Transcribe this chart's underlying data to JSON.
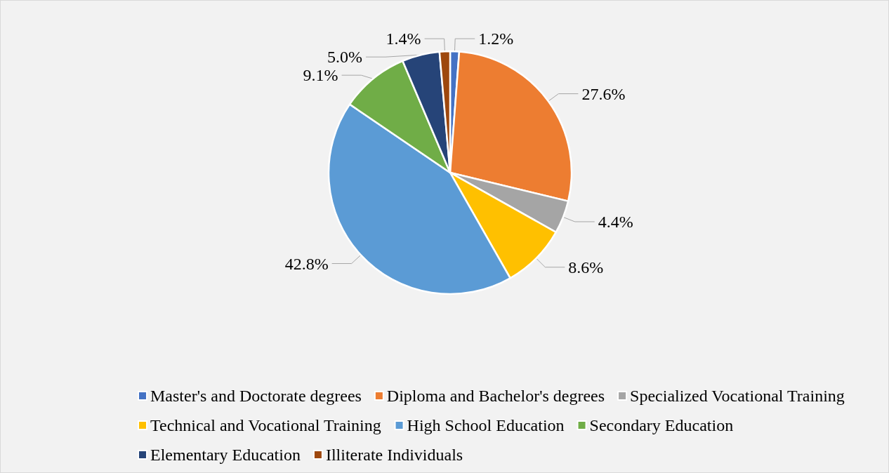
{
  "chart_data": {
    "type": "pie",
    "categories": [
      "Master's and Doctorate degrees",
      "Diploma and Bachelor's degrees",
      "Specialized Vocational Training",
      "Technical and Vocational Training",
      "High School Education",
      "Secondary Education",
      "Elementary Education",
      "Illiterate Individuals"
    ],
    "values": [
      1.2,
      27.6,
      4.4,
      8.6,
      42.8,
      9.1,
      5.0,
      1.4
    ],
    "colors": [
      "#4472c4",
      "#ed7d31",
      "#a5a5a5",
      "#ffc000",
      "#5b9bd5",
      "#70ad47",
      "#264478",
      "#9e480e"
    ],
    "value_labels": [
      "1.2%",
      "27.6%",
      "4.4%",
      "8.6%",
      "42.8%",
      "9.1%",
      "5.0%",
      "1.4%"
    ],
    "legend": "bottom"
  }
}
